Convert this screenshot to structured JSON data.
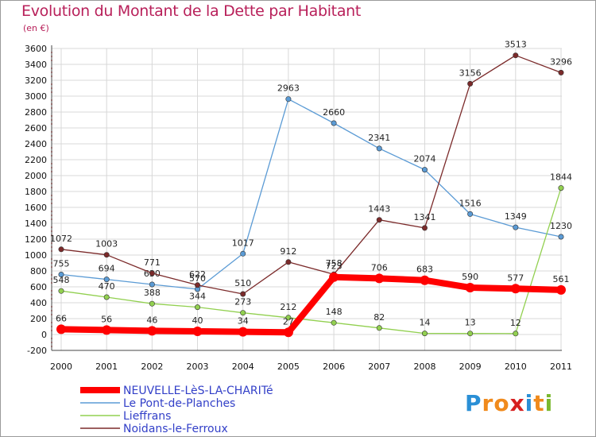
{
  "title": "Evolution du Montant de la Dette par Habitant",
  "unit": "(en €)",
  "logo": {
    "letters": [
      "P",
      "r",
      "o",
      "x",
      "i",
      "t",
      "i"
    ],
    "colors": [
      "#2a8fd6",
      "#f08a1c",
      "#f08a1c",
      "#d62020",
      "#2a8fd6",
      "#f08a1c",
      "#7ab82e"
    ]
  },
  "chart_data": {
    "type": "line",
    "title": "Evolution du Montant de la Dette par Habitant",
    "ylabel": "(en €)",
    "x": [
      "2000",
      "2001",
      "2002",
      "2003",
      "2004",
      "2005",
      "2006",
      "2007",
      "2008",
      "2009",
      "2010",
      "2011"
    ],
    "ylim": [
      -200,
      3600
    ],
    "yticks": [
      -200,
      0,
      200,
      400,
      600,
      800,
      1000,
      1200,
      1400,
      1600,
      1800,
      2000,
      2200,
      2400,
      2600,
      2800,
      3000,
      3200,
      3400,
      3600
    ],
    "grid": true,
    "legend_position": "bottom-left",
    "series": [
      {
        "name": "NEUVELLE-LèS-LA-CHARITé",
        "color": "#ff0000",
        "values": [
          66,
          56,
          46,
          40,
          34,
          27,
          723,
          706,
          683,
          590,
          577,
          561
        ]
      },
      {
        "name": "Le Pont-de-Planches",
        "color": "#5b9bd5",
        "values": [
          755,
          694,
          630,
          570,
          1017,
          2963,
          2660,
          2341,
          2074,
          1516,
          1349,
          1230
        ]
      },
      {
        "name": "Lieffrans",
        "color": "#92d050",
        "values": [
          548,
          470,
          388,
          344,
          273,
          212,
          148,
          82,
          14,
          13,
          12,
          1844
        ]
      },
      {
        "name": "Noidans-le-Ferroux",
        "color": "#7b2a2a",
        "values": [
          1072,
          1003,
          771,
          622,
          510,
          912,
          758,
          1443,
          1341,
          3156,
          3513,
          3296
        ]
      }
    ]
  }
}
